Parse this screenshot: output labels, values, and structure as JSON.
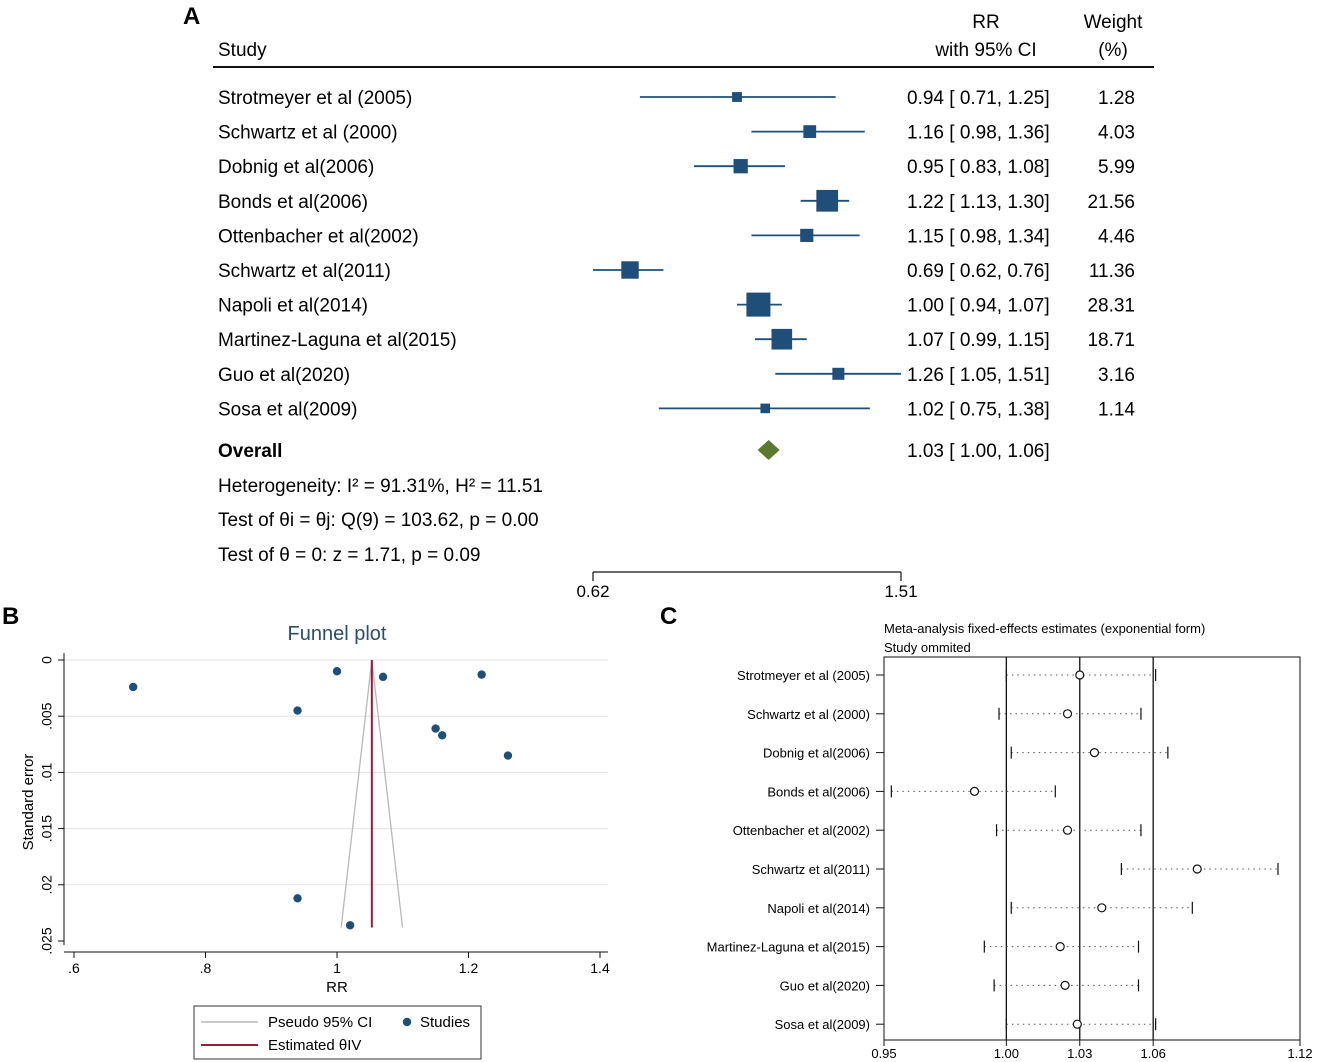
{
  "colors": {
    "marker": "#1f4e79",
    "diamond": "#5b7a2e",
    "estimated_line": "#a3173b",
    "pseudo_ci": "#b8b8b8",
    "grid": "#e3e3e3"
  },
  "chart_data": [
    {
      "type": "forest",
      "panel_label": "A",
      "headers": {
        "study": "Study",
        "rr_line1": "RR",
        "rr_line2": "with 95% CI",
        "weight_line1": "Weight",
        "weight_line2": "(%)"
      },
      "studies": [
        {
          "name": "Strotmeyer et al (2005)",
          "rr": 0.94,
          "lo": 0.71,
          "hi": 1.25,
          "weight": 1.28,
          "ci_text": "0.94 [ 0.71,  1.25]",
          "weight_text": "1.28"
        },
        {
          "name": "Schwartz et al (2000)",
          "rr": 1.16,
          "lo": 0.98,
          "hi": 1.36,
          "weight": 4.03,
          "ci_text": "1.16 [ 0.98,  1.36]",
          "weight_text": "4.03"
        },
        {
          "name": "Dobnig et al(2006)",
          "rr": 0.95,
          "lo": 0.83,
          "hi": 1.08,
          "weight": 5.99,
          "ci_text": "0.95 [ 0.83,  1.08]",
          "weight_text": "5.99"
        },
        {
          "name": "Bonds et al(2006)",
          "rr": 1.22,
          "lo": 1.13,
          "hi": 1.3,
          "weight": 21.56,
          "ci_text": "1.22 [ 1.13,  1.30]",
          "weight_text": "21.56"
        },
        {
          "name": "Ottenbacher et al(2002)",
          "rr": 1.15,
          "lo": 0.98,
          "hi": 1.34,
          "weight": 4.46,
          "ci_text": "1.15 [ 0.98,  1.34]",
          "weight_text": "4.46"
        },
        {
          "name": "Schwartz et al(2011)",
          "rr": 0.69,
          "lo": 0.62,
          "hi": 0.76,
          "weight": 11.36,
          "ci_text": "0.69 [ 0.62,  0.76]",
          "weight_text": "11.36"
        },
        {
          "name": "Napoli et al(2014)",
          "rr": 1.0,
          "lo": 0.94,
          "hi": 1.07,
          "weight": 28.31,
          "ci_text": "1.00 [ 0.94,  1.07]",
          "weight_text": "28.31"
        },
        {
          "name": "Martinez-Laguna et al(2015)",
          "rr": 1.07,
          "lo": 0.99,
          "hi": 1.15,
          "weight": 18.71,
          "ci_text": "1.07 [ 0.99,  1.15]",
          "weight_text": "18.71"
        },
        {
          "name": "Guo et al(2020)",
          "rr": 1.26,
          "lo": 1.05,
          "hi": 1.51,
          "weight": 3.16,
          "ci_text": "1.26 [ 1.05,  1.51]",
          "weight_text": "3.16"
        },
        {
          "name": "Sosa et al(2009)",
          "rr": 1.02,
          "lo": 0.75,
          "hi": 1.38,
          "weight": 1.14,
          "ci_text": "1.02 [ 0.75,  1.38]",
          "weight_text": "1.14"
        }
      ],
      "overall": {
        "label": "Overall",
        "rr": 1.03,
        "lo": 1.0,
        "hi": 1.06,
        "ci_text": "1.03 [ 1.00,  1.06]"
      },
      "footnotes": {
        "heterogeneity": "Heterogeneity: I² = 91.31%, H² = 11.51",
        "test_theta_i": "Test of θi = θj: Q(9) = 103.62, p = 0.00",
        "test_theta_0": "Test of θ = 0: z = 1.71, p = 0.09"
      },
      "axis": {
        "scale": "log",
        "range": [
          0.62,
          1.51
        ],
        "ticks": [
          "0.62",
          "1.51"
        ]
      }
    },
    {
      "type": "scatter",
      "panel_label": "B",
      "title": "Funnel plot",
      "xlabel": "RR",
      "ylabel": "Standard error",
      "xlim": [
        0.6,
        1.4
      ],
      "ylim": [
        0,
        0.025
      ],
      "y_reversed": true,
      "xticks": [
        ".6",
        ".8",
        "1",
        "1.2",
        "1.4"
      ],
      "yticks": [
        "0",
        ".005",
        ".01",
        ".015",
        ".02",
        ".025"
      ],
      "points": [
        {
          "x": 0.69,
          "y": 0.0024
        },
        {
          "x": 0.94,
          "y": 0.0045
        },
        {
          "x": 1.0,
          "y": 0.001
        },
        {
          "x": 1.07,
          "y": 0.0015
        },
        {
          "x": 1.22,
          "y": 0.0013
        },
        {
          "x": 1.15,
          "y": 0.0061
        },
        {
          "x": 1.16,
          "y": 0.0067
        },
        {
          "x": 1.26,
          "y": 0.0085
        },
        {
          "x": 0.94,
          "y": 0.0212
        },
        {
          "x": 1.02,
          "y": 0.0236
        }
      ],
      "estimated_theta": 1.053,
      "funnel_se_max": 0.0238,
      "legend": {
        "pseudo_ci": "Pseudo 95% CI",
        "studies": "Studies",
        "estimated": "Estimated θIV"
      }
    },
    {
      "type": "interval",
      "panel_label": "C",
      "title": "Meta-analysis fixed-effects estimates (exponential form)",
      "subtitle": "Study ommited",
      "xlim": [
        0.95,
        1.12
      ],
      "xticks": [
        "0.95",
        "1.00",
        "1.03",
        "1.06",
        "1.12"
      ],
      "reference_lines": [
        1.0,
        1.03,
        1.06
      ],
      "rows": [
        {
          "name": "Strotmeyer et al (2005)",
          "est": 1.03,
          "lo": 1.0,
          "hi": 1.061
        },
        {
          "name": "Schwartz et al (2000)",
          "est": 1.025,
          "lo": 0.997,
          "hi": 1.055
        },
        {
          "name": "Dobnig et al(2006)",
          "est": 1.036,
          "lo": 1.002,
          "hi": 1.066
        },
        {
          "name": "Bonds et al(2006)",
          "est": 0.987,
          "lo": 0.953,
          "hi": 1.02
        },
        {
          "name": "Ottenbacher et al(2002)",
          "est": 1.025,
          "lo": 0.996,
          "hi": 1.055
        },
        {
          "name": "Schwartz et al(2011)",
          "est": 1.078,
          "lo": 1.047,
          "hi": 1.111
        },
        {
          "name": "Napoli et al(2014)",
          "est": 1.039,
          "lo": 1.002,
          "hi": 1.076
        },
        {
          "name": "Martinez-Laguna et al(2015)",
          "est": 1.022,
          "lo": 0.991,
          "hi": 1.054
        },
        {
          "name": "Guo et al(2020)",
          "est": 1.024,
          "lo": 0.995,
          "hi": 1.054
        },
        {
          "name": "Sosa et al(2009)",
          "est": 1.029,
          "lo": 1.0,
          "hi": 1.061
        }
      ]
    }
  ]
}
